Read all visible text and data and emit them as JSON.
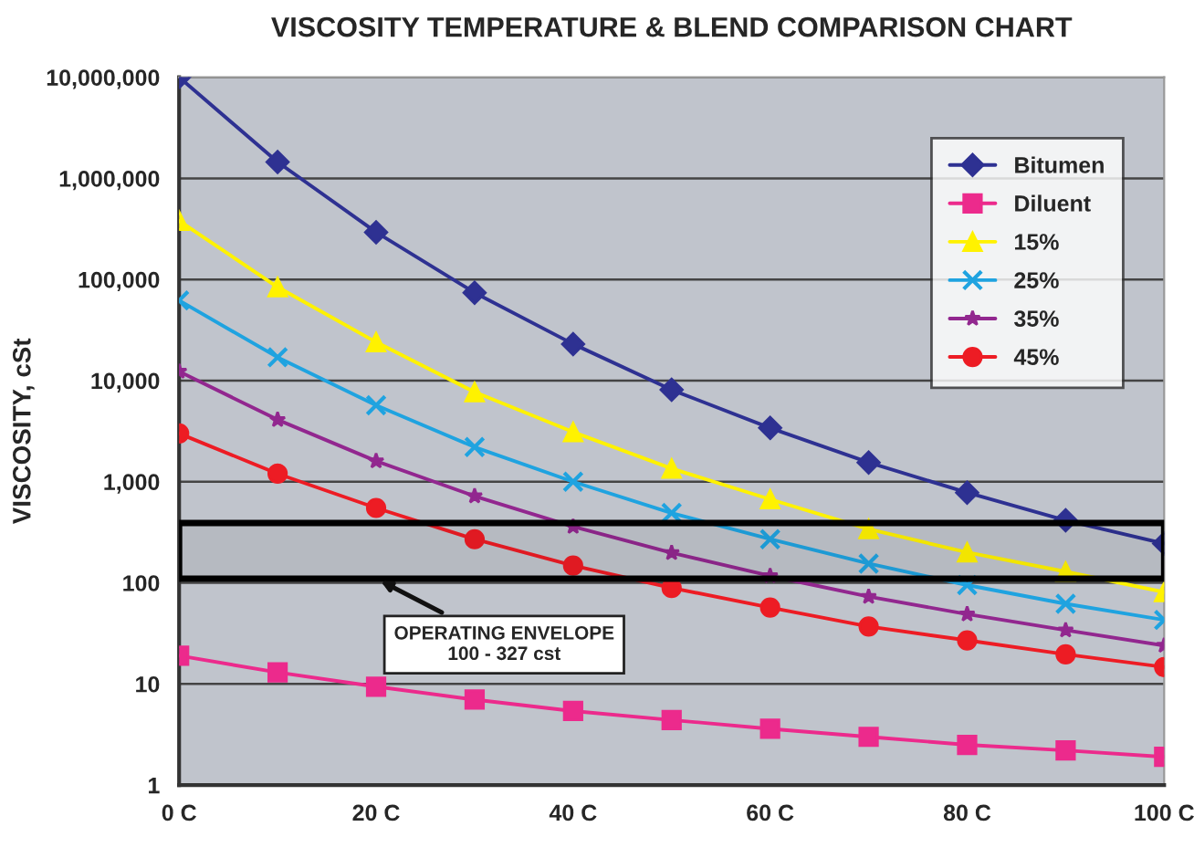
{
  "chart_data": {
    "type": "line",
    "title": "VISCOSITY TEMPERATURE & BLEND COMPARISON CHART",
    "ylabel": "VISCOSITY, cSt",
    "x": [
      0,
      10,
      20,
      30,
      40,
      50,
      60,
      70,
      80,
      90,
      100
    ],
    "series": [
      {
        "name": "Bitumen",
        "color": "#2e3192",
        "marker": "diamond",
        "values": [
          10000000,
          1450000,
          293000,
          74000,
          23000,
          8100,
          3400,
          1550,
          780,
          415,
          245
        ]
      },
      {
        "name": "Diluent",
        "color": "#ec2a8c",
        "marker": "square",
        "values": [
          19,
          13,
          9.4,
          7.0,
          5.4,
          4.4,
          3.6,
          3.0,
          2.5,
          2.2,
          1.9
        ]
      },
      {
        "name": "15%",
        "color": "#fff200",
        "marker": "triangle",
        "values": [
          380000,
          84000,
          24000,
          7700,
          3100,
          1350,
          670,
          340,
          200,
          129,
          81
        ]
      },
      {
        "name": "25%",
        "color": "#1fa3e0",
        "marker": "cross",
        "values": [
          62000,
          17000,
          5700,
          2200,
          1000,
          490,
          270,
          155,
          95,
          62,
          43
        ]
      },
      {
        "name": "35%",
        "color": "#92278f",
        "marker": "star",
        "values": [
          12300,
          4100,
          1600,
          720,
          360,
          198,
          117,
          73,
          49,
          34,
          24
        ]
      },
      {
        "name": "45%",
        "color": "#ed1c24",
        "marker": "circle",
        "values": [
          3000,
          1200,
          550,
          270,
          148,
          89,
          57,
          37,
          27,
          19.6,
          14.7
        ]
      }
    ],
    "log": "y",
    "xlim": [
      0,
      100
    ],
    "ylim": [
      1,
      10000000
    ],
    "xticks": [
      {
        "value": 0,
        "label": "0 C"
      },
      {
        "value": 20,
        "label": "20 C"
      },
      {
        "value": 40,
        "label": "40 C"
      },
      {
        "value": 60,
        "label": "60 C"
      },
      {
        "value": 80,
        "label": "80 C"
      },
      {
        "value": 100,
        "label": "100 C"
      }
    ],
    "yticks": [
      {
        "value": 1,
        "label": "1"
      },
      {
        "value": 10,
        "label": "10"
      },
      {
        "value": 100,
        "label": "100"
      },
      {
        "value": 1000,
        "label": "1,000"
      },
      {
        "value": 10000,
        "label": "10,000"
      },
      {
        "value": 100000,
        "label": "100,000"
      },
      {
        "value": 1000000,
        "label": "1,000,000"
      },
      {
        "value": 10000000,
        "label": "10,000,000"
      }
    ],
    "bands": [
      {
        "axis": "y",
        "from": 110,
        "to": 390,
        "label": "OPERATING ENVELOPE\n100 - 327 cst",
        "color": "#000000"
      }
    ],
    "grid": "y",
    "legend": "top right",
    "line_style": "solid"
  }
}
